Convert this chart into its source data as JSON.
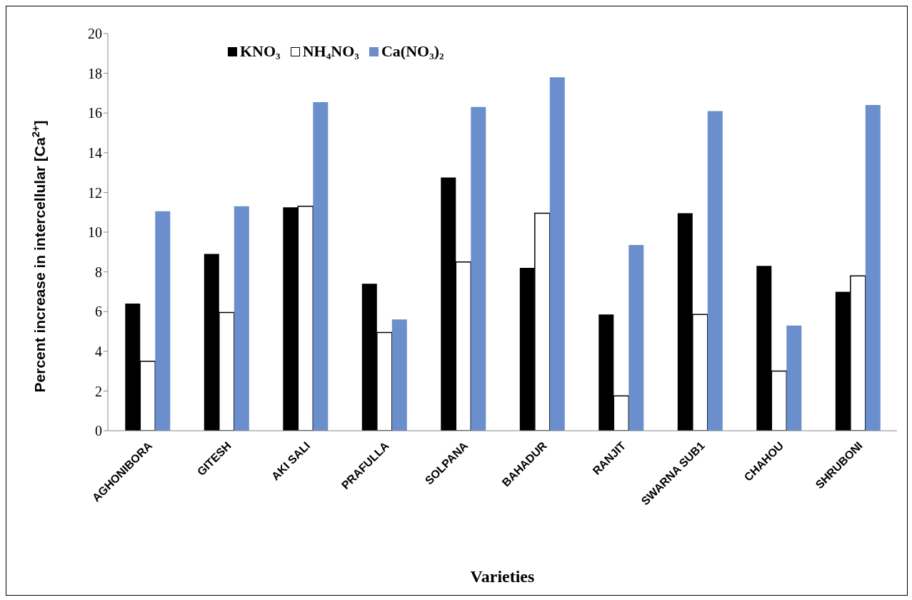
{
  "chart_data": {
    "type": "bar",
    "xlabel": "Varieties",
    "ylabel": "Percent increase in intercellular [Ca$^{2+}$]",
    "categories": [
      "AGHONIBORA",
      "GITESH",
      "AKI SALI",
      "PRAFULLA",
      "SOLPANA",
      "BAHADUR",
      "RANJIT",
      "SWARNA SUB1",
      "CHAHOU",
      "SHRUBONI"
    ],
    "series": [
      {
        "name": "KNO₃",
        "color": "#000000",
        "values": [
          6.4,
          8.9,
          11.25,
          7.4,
          12.75,
          8.2,
          5.85,
          10.95,
          8.3,
          7.0
        ]
      },
      {
        "name": "NH₄NO₃",
        "color": "#ffffff",
        "values": [
          3.5,
          5.95,
          11.3,
          4.95,
          8.5,
          10.95,
          1.75,
          5.85,
          3.0,
          7.8
        ]
      },
      {
        "name": "Ca(NO₃)₂",
        "color": "#6a8fcc",
        "values": [
          11.05,
          11.3,
          16.55,
          5.6,
          16.3,
          17.8,
          9.35,
          16.1,
          5.3,
          16.4
        ]
      }
    ],
    "ylim": [
      0,
      20
    ],
    "yticks": [
      0,
      2,
      4,
      6,
      8,
      10,
      12,
      14,
      16,
      18,
      20
    ],
    "grid": false,
    "legend": "top left"
  }
}
